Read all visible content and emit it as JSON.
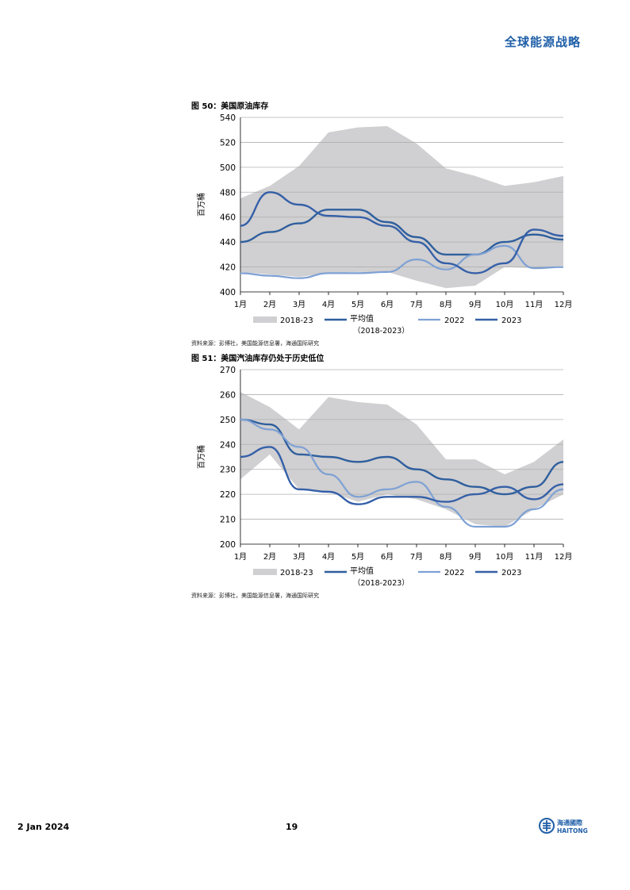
{
  "header": {
    "title": "全球能源战略"
  },
  "footer": {
    "date": "2 Jan 2024",
    "page": "19",
    "logo_cn": "海通國際",
    "logo_en": "HAITONG"
  },
  "colors": {
    "band": "#d0cfd1",
    "avg": "#2e5f9e",
    "y2022": "#7ea1d4",
    "y2023": "#3560a8",
    "grid": "#b0b0b0",
    "brand": "#1f5fa8"
  },
  "chart_data": [
    {
      "type": "area",
      "title": "图 50：美国原油库存",
      "ylabel": "百万桶",
      "categories": [
        "1月",
        "2月",
        "3月",
        "4月",
        "5月",
        "6月",
        "7月",
        "8月",
        "9月",
        "10月",
        "11月",
        "12月"
      ],
      "ylim": [
        400,
        540
      ],
      "yticks": [
        400,
        420,
        440,
        460,
        480,
        500,
        520,
        540
      ],
      "grid": true,
      "legend": "bottom",
      "band": {
        "name": "2018-23",
        "upper": [
          475,
          485,
          501,
          528,
          532,
          533,
          519,
          499,
          493,
          485,
          488,
          493
        ],
        "lower": [
          416,
          414,
          412,
          415,
          416,
          416,
          409,
          403,
          405,
          420,
          419,
          421
        ]
      },
      "series": [
        {
          "name": "平均值\n（2018-2023）",
          "values": [
            440,
            448,
            455,
            466,
            466,
            456,
            444,
            430,
            430,
            440,
            446,
            442
          ]
        },
        {
          "name": "2022",
          "values": [
            415,
            413,
            411,
            415,
            415,
            416,
            426,
            418,
            430,
            437,
            419,
            420
          ]
        },
        {
          "name": "2023",
          "values": [
            453,
            480,
            470,
            461,
            460,
            453,
            440,
            423,
            415,
            423,
            450,
            445
          ]
        }
      ],
      "source": "资料来源：彭博社，美国能源信息署，海通国际研究"
    },
    {
      "type": "area",
      "title": "图 51：美国汽油库存仍处于历史低位",
      "ylabel": "百万桶",
      "categories": [
        "1月",
        "2月",
        "3月",
        "4月",
        "5月",
        "6月",
        "7月",
        "8月",
        "9月",
        "10月",
        "11月",
        "12月"
      ],
      "ylim": [
        200,
        270
      ],
      "yticks": [
        200,
        210,
        220,
        230,
        240,
        250,
        260,
        270
      ],
      "grid": true,
      "legend": "bottom",
      "band": {
        "name": "2018-23",
        "upper": [
          261,
          255,
          246,
          259,
          257,
          256,
          248,
          234,
          234,
          228,
          233,
          242
        ],
        "lower": [
          226,
          236,
          222,
          221,
          217,
          220,
          218,
          214,
          208,
          207,
          214,
          220
        ]
      },
      "series": [
        {
          "name": "平均值\n（2018-2023）",
          "values": [
            250,
            248,
            236,
            235,
            233,
            235,
            230,
            226,
            223,
            220,
            223,
            233
          ]
        },
        {
          "name": "2022",
          "values": [
            250,
            246,
            239,
            228,
            219,
            222,
            225,
            215,
            207,
            207,
            214,
            222
          ]
        },
        {
          "name": "2023",
          "values": [
            235,
            239,
            222,
            221,
            216,
            219,
            219,
            217,
            220,
            223,
            218,
            224
          ]
        }
      ],
      "source": "资料来源：彭博社，美国能源信息署，海通国际研究"
    }
  ]
}
